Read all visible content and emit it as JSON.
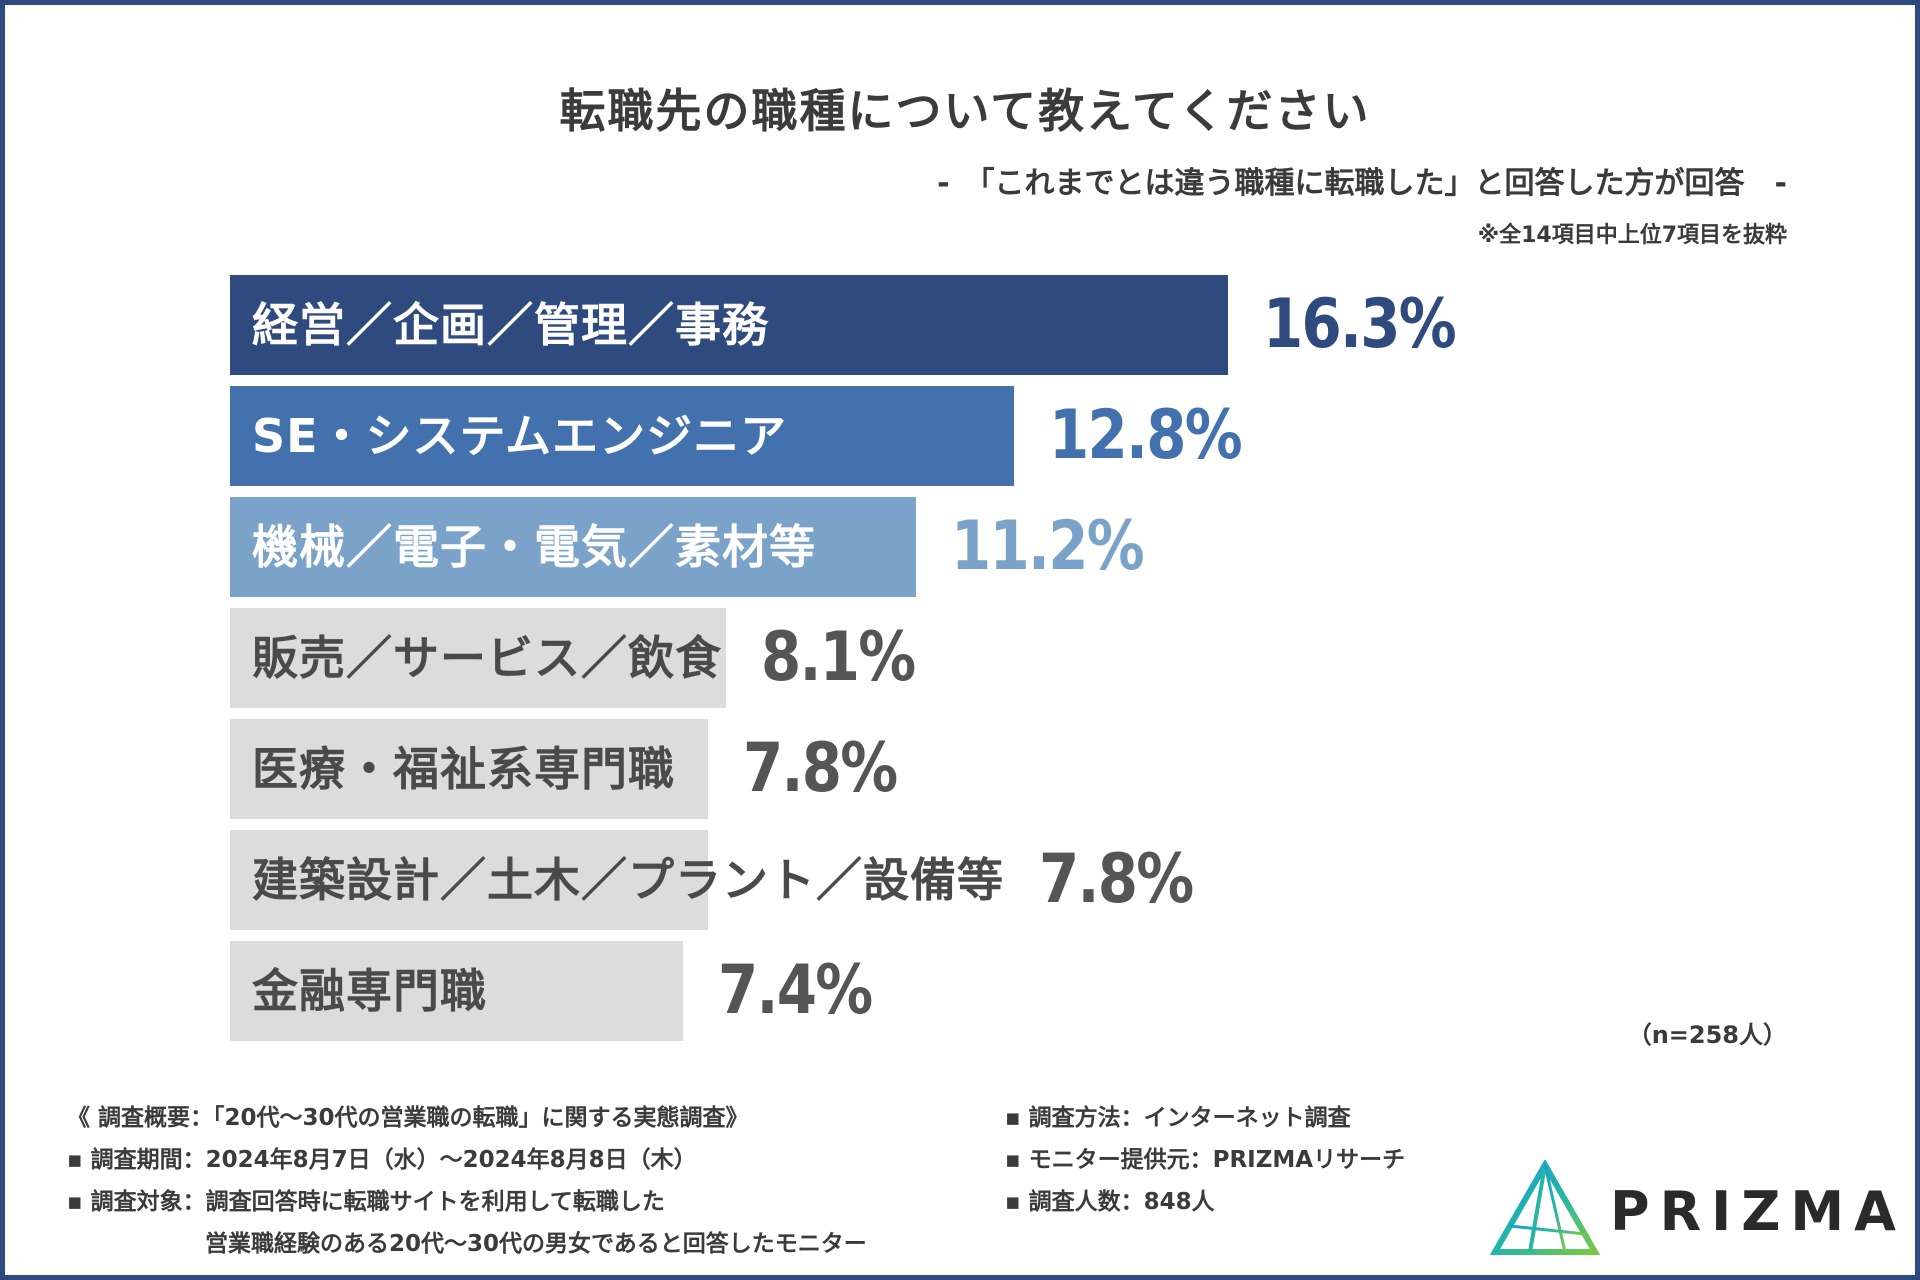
{
  "title": "転職先の職種について教えてください",
  "subtitle": "-　「これまでとは違う職種に転職した」と回答した方が回答　-",
  "note": "※全14項目中上位7項目を抜粋",
  "sample_note": "（n=258人）",
  "chart_data": {
    "type": "bar",
    "orientation": "horizontal",
    "title": "転職先の職種について教えてください",
    "unit": "%",
    "xlim": [
      0,
      20
    ],
    "categories": [
      "経営／企画／管理／事務",
      "SE・システムエンジニア",
      "機械／電子・電気／素材等",
      "販売／サービス／飲食",
      "医療・福祉系専門職",
      "建築設計／土木／プラント／設備等",
      "金融専門職"
    ],
    "values": [
      16.3,
      12.8,
      11.2,
      8.1,
      7.8,
      7.8,
      7.4
    ],
    "value_labels": [
      "16.3%",
      "12.8%",
      "11.2%",
      "8.1%",
      "7.8%",
      "7.8%",
      "7.4%"
    ],
    "bar_colors": [
      "#2e4a7e",
      "#4271ad",
      "#7ba3c9",
      "#dcdcdc",
      "#dcdcdc",
      "#dcdcdc",
      "#dcdcdc"
    ],
    "label_colors": [
      "#ffffff",
      "#ffffff",
      "#ffffff",
      "#4a4a4a",
      "#4a4a4a",
      "#4a4a4a",
      "#4a4a4a"
    ],
    "value_colors": [
      "#2e4a7e",
      "#4271ad",
      "#7ba3c9",
      "#555555",
      "#555555",
      "#555555",
      "#555555"
    ]
  },
  "footer": {
    "survey_overview": "《 調査概要：「20代～30代の営業職の転職」に関する実態調査》",
    "period": "▪ 調査期間：2024年8月7日（水）～2024年8月8日（木）",
    "target_line1": "▪ 調査対象：調査回答時に転職サイトを利用して転職した",
    "target_line2": "営業職経験のある20代～30代の男女であると回答したモニター",
    "method": "▪ 調査方法：インターネット調査",
    "provider": "▪ モニター提供元：PRIZMAリサーチ",
    "count": "▪ 調査人数：848人"
  },
  "logo": {
    "text": "PRIZMA",
    "colors": [
      "#1c9bd2",
      "#23b6a6",
      "#7ac943"
    ]
  }
}
